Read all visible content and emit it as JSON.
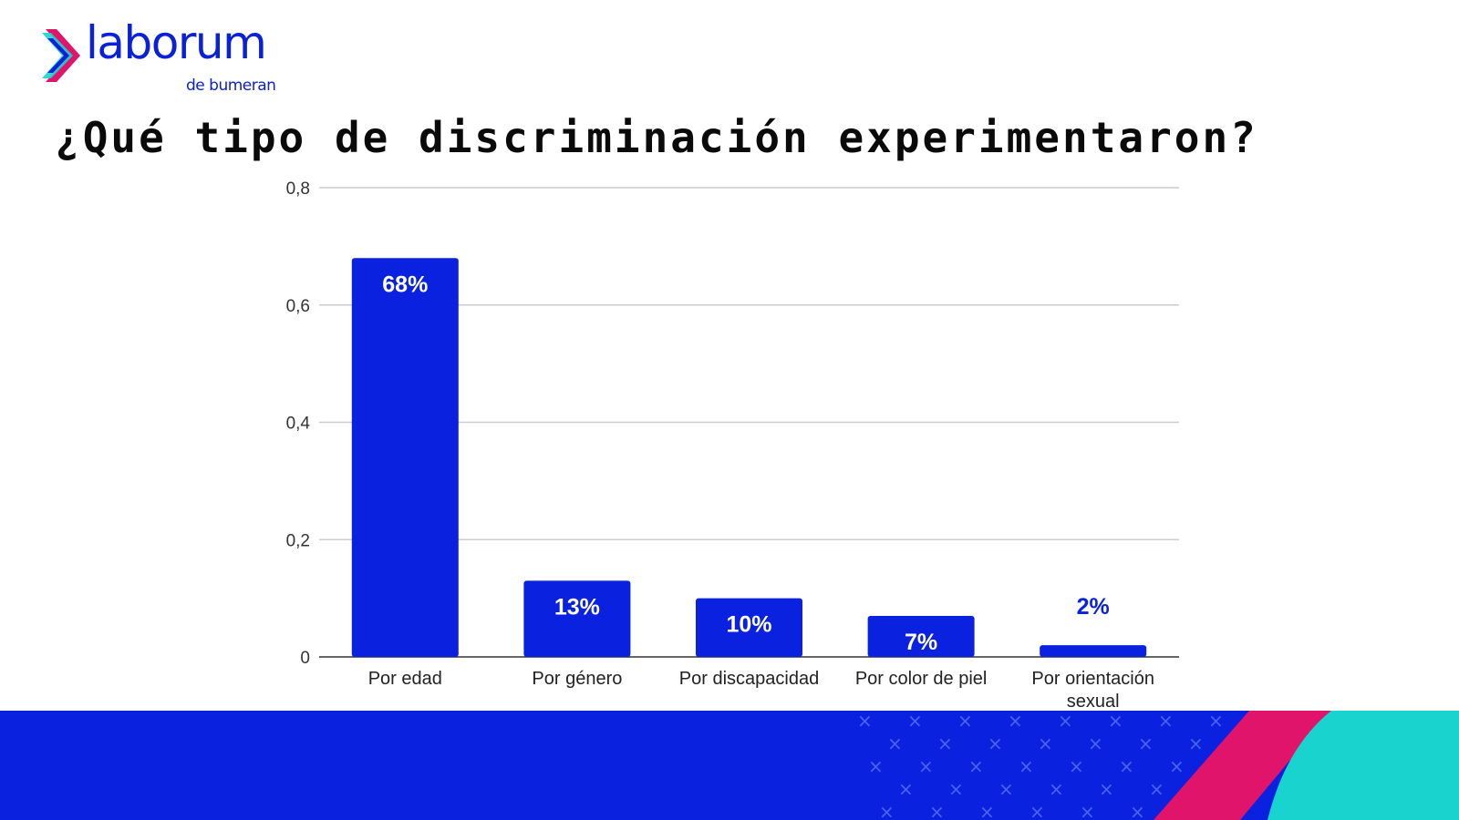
{
  "brand": {
    "name": "laborum",
    "tagline": "de bumeran",
    "colors": {
      "blue": "#0b21d8",
      "pink": "#e0146a",
      "cyan": "#19d3cf"
    }
  },
  "slide": {
    "title": "¿Qué tipo de discriminación experimentaron?"
  },
  "chart_data": {
    "type": "bar",
    "title": "",
    "xlabel": "",
    "ylabel": "",
    "ylim": [
      0,
      0.8
    ],
    "yticks": [
      0,
      0.2,
      0.4,
      0.6,
      0.8
    ],
    "ytick_labels": [
      "0",
      "0,2",
      "0,4",
      "0,6",
      "0,8"
    ],
    "grid": true,
    "categories": [
      "Por edad",
      "Por género",
      "Por discapacidad",
      "Por color de piel",
      "Por orientación sexual"
    ],
    "category_lines": [
      [
        "Por edad"
      ],
      [
        "Por género"
      ],
      [
        "Por discapacidad"
      ],
      [
        "Por color de piel"
      ],
      [
        "Por orientación",
        "sexual"
      ]
    ],
    "values": [
      0.68,
      0.13,
      0.1,
      0.07,
      0.02
    ],
    "data_labels": [
      "68%",
      "13%",
      "10%",
      "7%",
      "2%"
    ],
    "bar_color": "#0b21e0"
  }
}
